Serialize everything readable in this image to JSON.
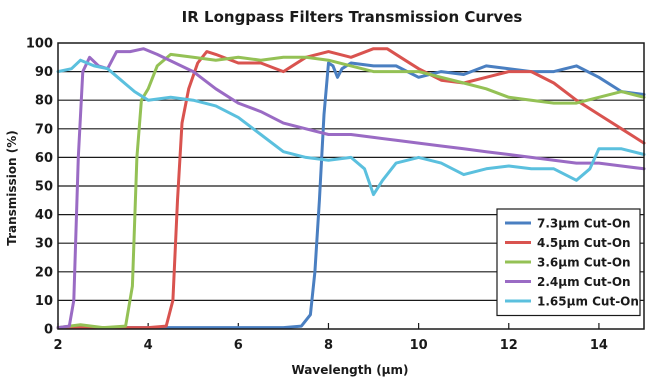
{
  "chart_data": {
    "type": "line",
    "title": "IR Longpass Filters Transmission Curves",
    "xlabel": "Wavelength (μm)",
    "ylabel": "Transmission (%)",
    "xlim": [
      2,
      15
    ],
    "ylim": [
      0,
      100
    ],
    "x_ticks": [
      "2",
      "4",
      "6",
      "8",
      "10",
      "12",
      "14"
    ],
    "y_ticks": [
      "0",
      "10",
      "20",
      "30",
      "40",
      "50",
      "60",
      "70",
      "80",
      "90",
      "100"
    ],
    "grid": "horizontal",
    "legend_position": "bottom-right",
    "series": [
      {
        "name": "7.3μm Cut-On",
        "color": "#4a7fc1",
        "points": [
          [
            2,
            0.5
          ],
          [
            3,
            0.5
          ],
          [
            4,
            0.5
          ],
          [
            5,
            0.5
          ],
          [
            6,
            0.5
          ],
          [
            7,
            0.5
          ],
          [
            7.4,
            1
          ],
          [
            7.6,
            5
          ],
          [
            7.7,
            20
          ],
          [
            7.8,
            45
          ],
          [
            7.9,
            75
          ],
          [
            8.0,
            93
          ],
          [
            8.1,
            92
          ],
          [
            8.2,
            88
          ],
          [
            8.3,
            91
          ],
          [
            8.5,
            93
          ],
          [
            9,
            92
          ],
          [
            9.5,
            92
          ],
          [
            10,
            88
          ],
          [
            10.5,
            90
          ],
          [
            11,
            89
          ],
          [
            11.5,
            92
          ],
          [
            12,
            91
          ],
          [
            12.5,
            90
          ],
          [
            13,
            90
          ],
          [
            13.5,
            92
          ],
          [
            14,
            88
          ],
          [
            14.5,
            83
          ],
          [
            15,
            82
          ]
        ]
      },
      {
        "name": "4.5μm Cut-On",
        "color": "#d9534f",
        "points": [
          [
            2,
            0.5
          ],
          [
            3,
            0.5
          ],
          [
            4,
            0.5
          ],
          [
            4.4,
            1
          ],
          [
            4.55,
            10
          ],
          [
            4.65,
            45
          ],
          [
            4.75,
            72
          ],
          [
            4.9,
            84
          ],
          [
            5.1,
            93
          ],
          [
            5.3,
            97
          ],
          [
            5.5,
            96
          ],
          [
            6,
            93
          ],
          [
            6.5,
            93
          ],
          [
            7,
            90
          ],
          [
            7.5,
            95
          ],
          [
            8,
            97
          ],
          [
            8.5,
            95
          ],
          [
            9,
            98
          ],
          [
            9.3,
            98
          ],
          [
            9.7,
            94
          ],
          [
            10,
            91
          ],
          [
            10.5,
            87
          ],
          [
            11,
            86
          ],
          [
            11.5,
            88
          ],
          [
            12,
            90
          ],
          [
            12.5,
            90
          ],
          [
            13,
            86
          ],
          [
            13.5,
            80
          ],
          [
            14,
            75
          ],
          [
            14.5,
            70
          ],
          [
            15,
            65
          ]
        ]
      },
      {
        "name": "3.6μm Cut-On",
        "color": "#94c155",
        "points": [
          [
            2,
            0.5
          ],
          [
            2.5,
            1.5
          ],
          [
            3,
            0.5
          ],
          [
            3.5,
            1
          ],
          [
            3.65,
            15
          ],
          [
            3.75,
            60
          ],
          [
            3.85,
            80
          ],
          [
            4,
            84
          ],
          [
            4.2,
            92
          ],
          [
            4.5,
            96
          ],
          [
            5,
            95
          ],
          [
            5.5,
            94
          ],
          [
            6,
            95
          ],
          [
            6.5,
            94
          ],
          [
            7,
            95
          ],
          [
            7.5,
            95
          ],
          [
            8,
            94
          ],
          [
            8.5,
            92
          ],
          [
            9,
            90
          ],
          [
            9.5,
            90
          ],
          [
            10,
            90
          ],
          [
            10.5,
            88
          ],
          [
            11,
            86
          ],
          [
            11.5,
            84
          ],
          [
            12,
            81
          ],
          [
            12.5,
            80
          ],
          [
            13,
            79
          ],
          [
            13.5,
            79
          ],
          [
            14,
            81
          ],
          [
            14.5,
            83
          ],
          [
            15,
            81
          ]
        ]
      },
      {
        "name": "2.4μm Cut-On",
        "color": "#9a6bc4",
        "points": [
          [
            2,
            0.5
          ],
          [
            2.25,
            1
          ],
          [
            2.35,
            10
          ],
          [
            2.45,
            60
          ],
          [
            2.55,
            90
          ],
          [
            2.7,
            95
          ],
          [
            2.9,
            92
          ],
          [
            3.1,
            91
          ],
          [
            3.3,
            97
          ],
          [
            3.6,
            97
          ],
          [
            3.9,
            98
          ],
          [
            4.2,
            96
          ],
          [
            4.6,
            93
          ],
          [
            5,
            90
          ],
          [
            5.5,
            84
          ],
          [
            6,
            79
          ],
          [
            6.5,
            76
          ],
          [
            7,
            72
          ],
          [
            7.5,
            70
          ],
          [
            8,
            68
          ],
          [
            8.5,
            68
          ],
          [
            9,
            67
          ],
          [
            9.5,
            66
          ],
          [
            10,
            65
          ],
          [
            10.5,
            64
          ],
          [
            11,
            63
          ],
          [
            11.5,
            62
          ],
          [
            12,
            61
          ],
          [
            12.5,
            60
          ],
          [
            13,
            59
          ],
          [
            13.5,
            58
          ],
          [
            14,
            58
          ],
          [
            14.5,
            57
          ],
          [
            15,
            56
          ]
        ]
      },
      {
        "name": "1.65μm Cut-On",
        "color": "#5bc0de",
        "points": [
          [
            2,
            90
          ],
          [
            2.3,
            91
          ],
          [
            2.5,
            94
          ],
          [
            2.8,
            92
          ],
          [
            3.1,
            91
          ],
          [
            3.4,
            87
          ],
          [
            3.7,
            83
          ],
          [
            4,
            80
          ],
          [
            4.5,
            81
          ],
          [
            5,
            80
          ],
          [
            5.5,
            78
          ],
          [
            6,
            74
          ],
          [
            6.5,
            68
          ],
          [
            7,
            62
          ],
          [
            7.5,
            60
          ],
          [
            8,
            59
          ],
          [
            8.5,
            60
          ],
          [
            8.8,
            56
          ],
          [
            9,
            47
          ],
          [
            9.2,
            52
          ],
          [
            9.5,
            58
          ],
          [
            10,
            60
          ],
          [
            10.5,
            58
          ],
          [
            11,
            54
          ],
          [
            11.5,
            56
          ],
          [
            12,
            57
          ],
          [
            12.5,
            56
          ],
          [
            13,
            56
          ],
          [
            13.5,
            52
          ],
          [
            13.8,
            56
          ],
          [
            14,
            63
          ],
          [
            14.5,
            63
          ],
          [
            15,
            61
          ]
        ]
      }
    ]
  }
}
